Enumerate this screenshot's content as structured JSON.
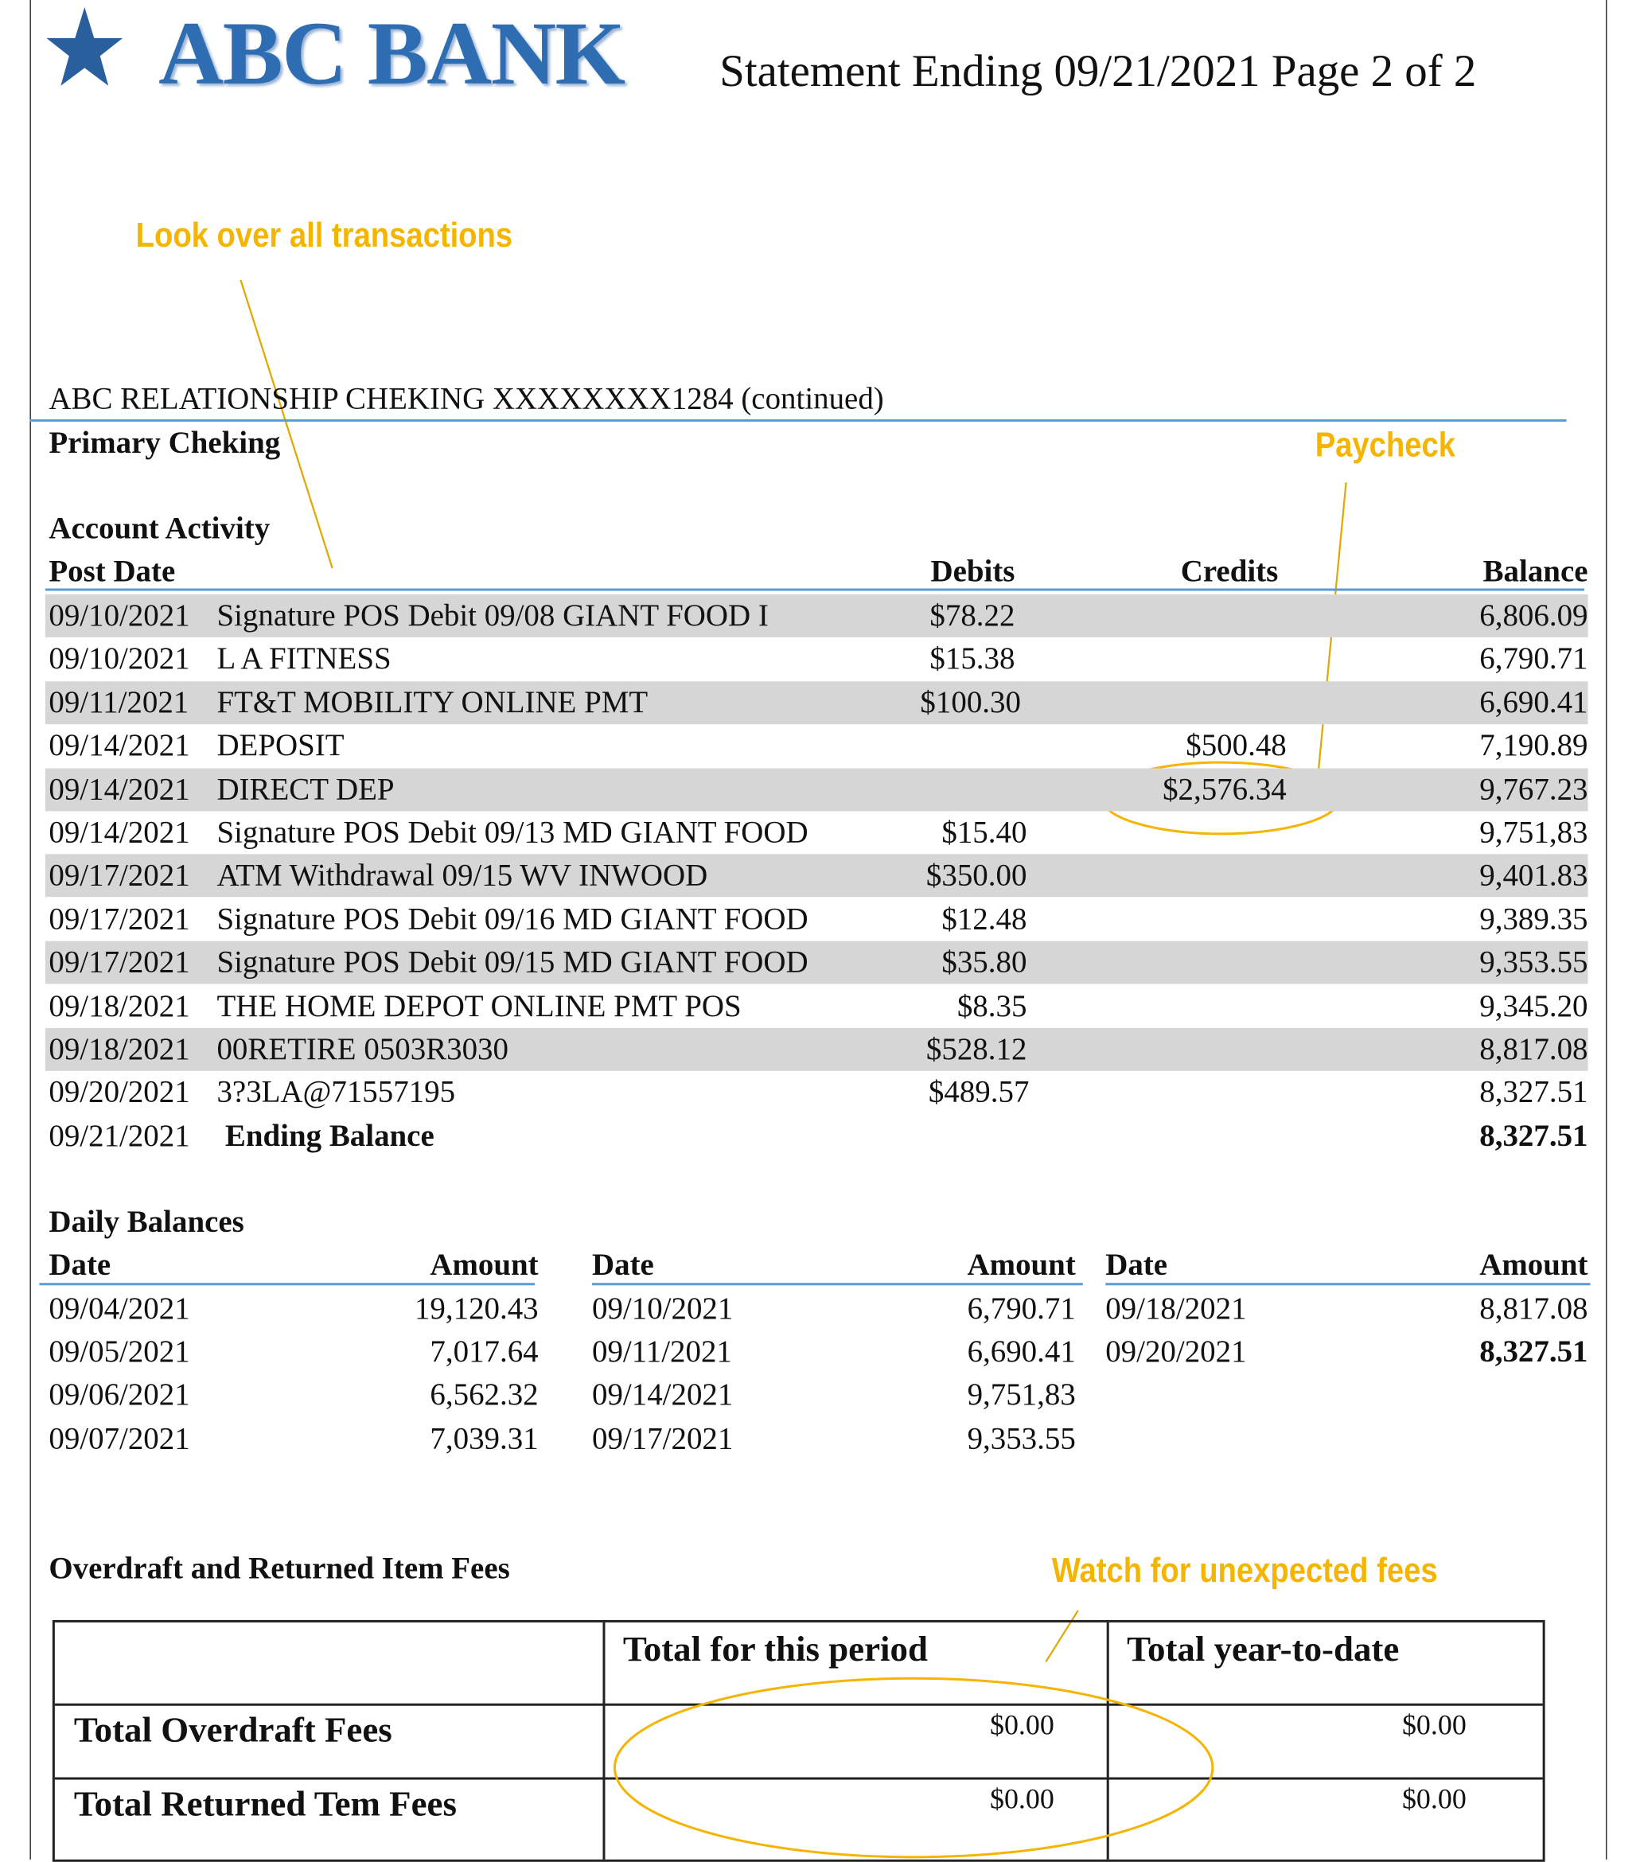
{
  "header": {
    "bank_name": "ABC BANK",
    "statement": "Statement Ending 09/21/2021 Page 2 of 2",
    "logo_icon": "star-icon",
    "brand_color": "#2f6db3"
  },
  "annotations": {
    "transactions": "Look over all transactions",
    "paycheck": "Paycheck",
    "fees": "Watch for unexpected fees",
    "color": "#f5b400"
  },
  "account": {
    "title": "ABC RELATIONSHIP CHEKING XXXXXXXX1284 (continued)",
    "subtitle": "Primary Cheking",
    "activity_title": "Account Activity"
  },
  "activity": {
    "headers": {
      "post_date": "Post Date",
      "debits": "Debits",
      "credits": "Credits",
      "balance": "Balance"
    },
    "rows": [
      {
        "date": "09/10/2021",
        "desc": "Signature POS Debit 09/08 GIANT FOOD I",
        "debit": "$78.22",
        "credit": "",
        "balance": "6,806.09"
      },
      {
        "date": "09/10/2021",
        "desc": "L A FITNESS",
        "debit": "$15.38",
        "credit": "",
        "balance": "6,790.71"
      },
      {
        "date": "09/11/2021",
        "desc": "FT&T MOBILITY ONLINE PMT",
        "debit": "$100.30",
        "credit": "",
        "balance": "6,690.41"
      },
      {
        "date": "09/14/2021",
        "desc": "DEPOSIT",
        "debit": "",
        "credit": "$500.48",
        "balance": "7,190.89"
      },
      {
        "date": "09/14/2021",
        "desc": "DIRECT DEP",
        "debit": "",
        "credit": "$2,576.34",
        "balance": "9,767.23"
      },
      {
        "date": "09/14/2021",
        "desc": "Signature POS Debit 09/13 MD GIANT FOOD",
        "debit": "$15.40",
        "credit": "",
        "balance": "9,751,83"
      },
      {
        "date": "09/17/2021",
        "desc": "ATM Withdrawal  09/15 WV INWOOD",
        "debit": "$350.00",
        "credit": "",
        "balance": "9,401.83"
      },
      {
        "date": "09/17/2021",
        "desc": "Signature POS Debit 09/16 MD GIANT FOOD",
        "debit": "$12.48",
        "credit": "",
        "balance": "9,389.35"
      },
      {
        "date": "09/17/2021",
        "desc": "Signature POS Debit 09/15 MD GIANT FOOD",
        "debit": "$35.80",
        "credit": "",
        "balance": "9,353.55"
      },
      {
        "date": "09/18/2021",
        "desc": "THE HOME DEPOT ONLINE PMT POS",
        "debit": "$8.35",
        "credit": "",
        "balance": "9,345.20"
      },
      {
        "date": "09/18/2021",
        "desc": " 00RETIRE 0503R3030",
        "debit": "$528.12",
        "credit": "",
        "balance": "8,817.08"
      },
      {
        "date": "09/20/2021",
        "desc": " 3?3LA@71557195",
        "debit": "$489.57",
        "credit": "",
        "balance": "8,327.51"
      }
    ],
    "ending": {
      "date": "09/21/2021",
      "label": "Ending Balance",
      "balance": "8,327.51"
    }
  },
  "daily": {
    "title": "Daily Balances",
    "date_label": "Date",
    "amount_label": "Amount",
    "columns": [
      [
        {
          "date": "09/04/2021",
          "amount": "19,120.43"
        },
        {
          "date": "09/05/2021",
          "amount": "7,017.64"
        },
        {
          "date": "09/06/2021",
          "amount": "6,562.32"
        },
        {
          "date": "09/07/2021",
          "amount": "7,039.31"
        }
      ],
      [
        {
          "date": "09/10/2021",
          "amount": "6,790.71"
        },
        {
          "date": "09/11/2021",
          "amount": "6,690.41"
        },
        {
          "date": "09/14/2021",
          "amount": "9,751,83"
        },
        {
          "date": "09/17/2021",
          "amount": "9,353.55"
        }
      ],
      [
        {
          "date": "09/18/2021",
          "amount": "8,817.08"
        },
        {
          "date": "09/20/2021",
          "amount": "8,327.51"
        }
      ]
    ]
  },
  "fees": {
    "title": "Overdraft and Returned Item Fees",
    "col_period": "Total for this period",
    "col_ytd": "Total year-to-date",
    "rows": [
      {
        "label": "Total Overdraft Fees",
        "period": "$0.00",
        "ytd": "$0.00"
      },
      {
        "label": "Total Returned Tem Fees",
        "period": "$0.00",
        "ytd": "$0.00"
      }
    ]
  }
}
